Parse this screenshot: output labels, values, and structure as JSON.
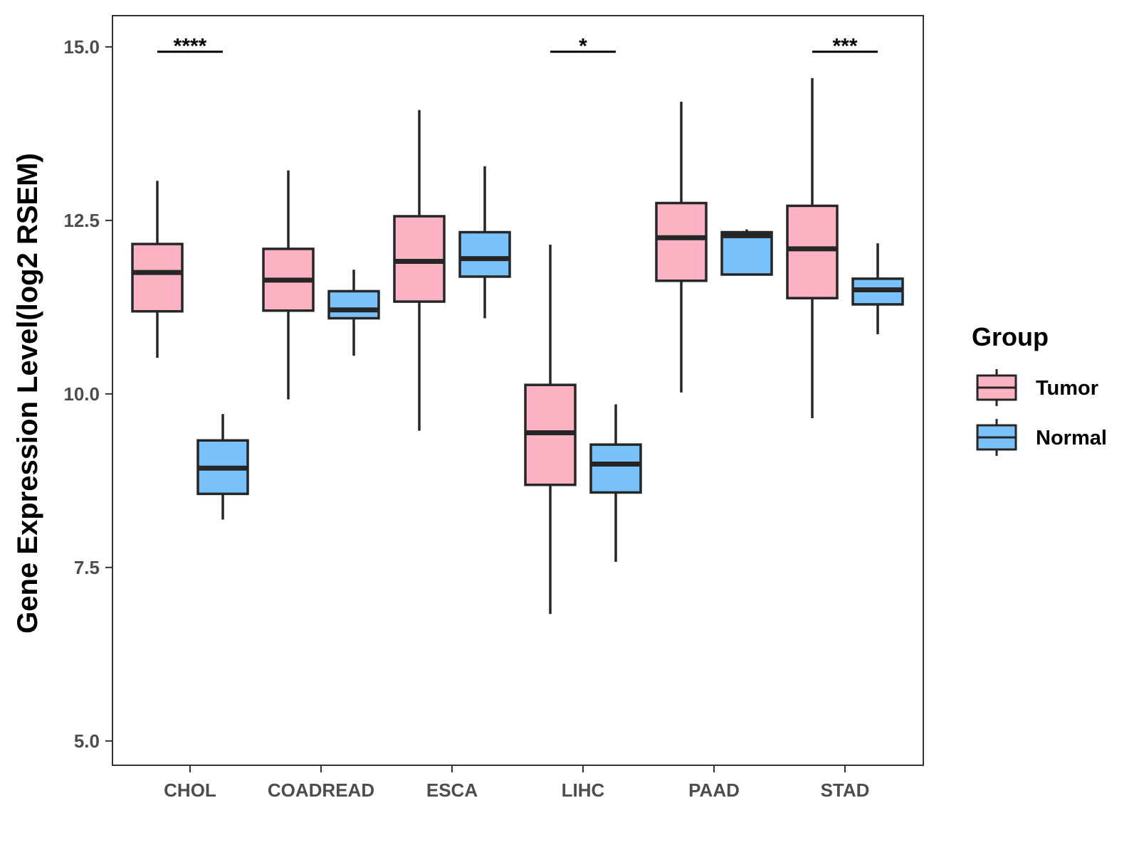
{
  "chart_data": {
    "type": "boxplot",
    "title": "",
    "xlabel": "",
    "ylabel": "Gene Expression Level(log2 RSEM)",
    "ylim": [
      4.65,
      15.45
    ],
    "yticks": [
      5.0,
      7.5,
      10.0,
      12.5,
      15.0
    ],
    "ytick_labels": [
      "5.0",
      "7.5",
      "10.0",
      "12.5",
      "15.0"
    ],
    "categories": [
      "CHOL",
      "COADREAD",
      "ESCA",
      "LIHC",
      "PAAD",
      "STAD"
    ],
    "grid": false,
    "legend": {
      "title": "Group",
      "position": "right",
      "entries": [
        {
          "name": "Tumor",
          "color": "#FBB2C3"
        },
        {
          "name": "Normal",
          "color": "#79C2F9"
        }
      ]
    },
    "series": [
      {
        "name": "Tumor",
        "color": "#FBB2C3",
        "boxes": [
          {
            "category": "CHOL",
            "whisker_low": 10.52,
            "q1": 11.19,
            "median": 11.75,
            "q3": 12.16,
            "whisker_high": 13.07
          },
          {
            "category": "COADREAD",
            "whisker_low": 9.92,
            "q1": 11.2,
            "median": 11.64,
            "q3": 12.09,
            "whisker_high": 13.22
          },
          {
            "category": "ESCA",
            "whisker_low": 9.47,
            "q1": 11.33,
            "median": 11.91,
            "q3": 12.56,
            "whisker_high": 14.09
          },
          {
            "category": "LIHC",
            "whisker_low": 6.83,
            "q1": 8.69,
            "median": 9.44,
            "q3": 10.13,
            "whisker_high": 12.15
          },
          {
            "category": "PAAD",
            "whisker_low": 10.02,
            "q1": 11.63,
            "median": 12.25,
            "q3": 12.75,
            "whisker_high": 14.21
          },
          {
            "category": "STAD",
            "whisker_low": 9.65,
            "q1": 11.38,
            "median": 12.09,
            "q3": 12.71,
            "whisker_high": 14.55
          }
        ]
      },
      {
        "name": "Normal",
        "color": "#79C2F9",
        "boxes": [
          {
            "category": "CHOL",
            "whisker_low": 8.19,
            "q1": 8.56,
            "median": 8.93,
            "q3": 9.33,
            "whisker_high": 9.71
          },
          {
            "category": "COADREAD",
            "whisker_low": 10.55,
            "q1": 11.09,
            "median": 11.21,
            "q3": 11.48,
            "whisker_high": 11.79
          },
          {
            "category": "ESCA",
            "whisker_low": 11.09,
            "q1": 11.69,
            "median": 11.95,
            "q3": 12.33,
            "whisker_high": 13.28
          },
          {
            "category": "LIHC",
            "whisker_low": 7.58,
            "q1": 8.58,
            "median": 8.99,
            "q3": 9.27,
            "whisker_high": 9.85
          },
          {
            "category": "PAAD",
            "whisker_low": 11.72,
            "q1": 11.72,
            "median": 12.28,
            "q3": 12.33,
            "whisker_high": 12.37
          },
          {
            "category": "STAD",
            "whisker_low": 10.86,
            "q1": 11.29,
            "median": 11.5,
            "q3": 11.66,
            "whisker_high": 12.17
          }
        ]
      }
    ],
    "annotations": [
      {
        "category": "CHOL",
        "label": "****",
        "y": 14.93
      },
      {
        "category": "LIHC",
        "label": "*",
        "y": 14.93
      },
      {
        "category": "STAD",
        "label": "***",
        "y": 14.93
      }
    ]
  }
}
